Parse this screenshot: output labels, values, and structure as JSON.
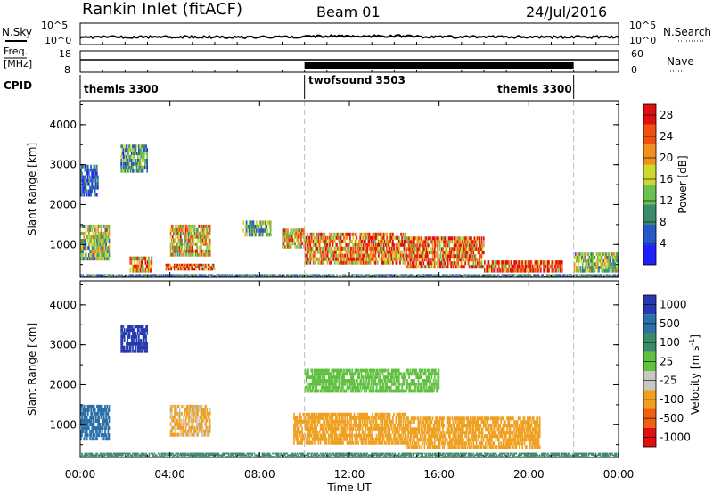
{
  "header": {
    "title": "Rankin Inlet (fitACF)",
    "beam": "Beam 01",
    "date": "24/Jul/2016"
  },
  "strip_noise": {
    "left_label": "N.Sky",
    "right_label": "N.Search",
    "left_ticks": [
      "10^5",
      "10^0"
    ],
    "right_ticks": [
      "10^5",
      "10^0"
    ]
  },
  "strip_freq": {
    "left_label_line1": "Freq.",
    "left_label_line2": "[MHz]",
    "left_ticks": [
      "18",
      "8"
    ],
    "right_ticks": [
      "60",
      "0"
    ],
    "right_label": "Nave"
  },
  "strip_cpid": {
    "label": "CPID",
    "segments": [
      {
        "name": "themis 3300",
        "start_h": 0,
        "end_h": 10.0
      },
      {
        "name": "twofsound 3503",
        "start_h": 10.0,
        "end_h": 22.0
      },
      {
        "name": "themis 3300",
        "start_h": 10.0,
        "end_h": 22.0,
        "label_anchor_h": 16.1
      }
    ]
  },
  "x_axis": {
    "label": "Time UT",
    "ticks": [
      "00:00",
      "04:00",
      "08:00",
      "12:00",
      "16:00",
      "20:00",
      "00:00"
    ],
    "tick_hours": [
      0,
      4,
      8,
      12,
      16,
      20,
      24
    ]
  },
  "chart_data": [
    {
      "type": "heatmap",
      "name": "power",
      "ylabel": "Slant Range [km]",
      "yticks": [
        1000,
        2000,
        3000,
        4000
      ],
      "ylim": [
        180,
        4600
      ],
      "xlim_hours": [
        0,
        24
      ],
      "colorbar": {
        "label": "Power [dB]",
        "ticks": [
          "4",
          "8",
          "12",
          "16",
          "20",
          "24",
          "28"
        ],
        "tick_values": [
          4,
          8,
          12,
          16,
          20,
          24,
          28
        ],
        "range": [
          0,
          30
        ],
        "colors": [
          "#2020ff",
          "#2858c8",
          "#3a8c68",
          "#6ac050",
          "#d0d830",
          "#f09020",
          "#f05010",
          "#e01010"
        ]
      },
      "regions": [
        {
          "t": [
            0.0,
            1.3
          ],
          "r": [
            600,
            1500
          ],
          "v": 14
        },
        {
          "t": [
            0.0,
            0.8
          ],
          "r": [
            2200,
            3000
          ],
          "v": 6
        },
        {
          "t": [
            1.8,
            3.0
          ],
          "r": [
            2800,
            3500
          ],
          "v": 10
        },
        {
          "t": [
            2.2,
            3.2
          ],
          "r": [
            300,
            700
          ],
          "v": 22
        },
        {
          "t": [
            4.0,
            5.8
          ],
          "r": [
            700,
            1500
          ],
          "v": 18
        },
        {
          "t": [
            3.8,
            6.0
          ],
          "r": [
            350,
            520
          ],
          "v": 24
        },
        {
          "t": [
            7.2,
            8.5
          ],
          "r": [
            1200,
            1600
          ],
          "v": 12
        },
        {
          "t": [
            9.0,
            10.0
          ],
          "r": [
            900,
            1400
          ],
          "v": 20
        },
        {
          "t": [
            10.0,
            14.5
          ],
          "r": [
            500,
            1300
          ],
          "v": 22
        },
        {
          "t": [
            14.5,
            18.0
          ],
          "r": [
            400,
            1200
          ],
          "v": 24
        },
        {
          "t": [
            18.0,
            21.5
          ],
          "r": [
            300,
            600
          ],
          "v": 26
        },
        {
          "t": [
            22.0,
            24.0
          ],
          "r": [
            300,
            800
          ],
          "v": 14
        },
        {
          "t": [
            0.0,
            24.0
          ],
          "r": [
            180,
            260
          ],
          "v": 8
        }
      ]
    },
    {
      "type": "heatmap",
      "name": "velocity",
      "ylabel": "Slant Range [km]",
      "yticks": [
        1000,
        2000,
        3000,
        4000
      ],
      "ylim": [
        180,
        4600
      ],
      "xlim_hours": [
        0,
        24
      ],
      "colorbar": {
        "label": "Velocity [m s^-1]",
        "ticks": [
          "1000",
          "500",
          "100",
          "25",
          "-25",
          "-100",
          "-500",
          "-1000"
        ],
        "tick_values": [
          1000,
          500,
          100,
          25,
          -25,
          -100,
          -500,
          -1000
        ],
        "colors": [
          "#2838b0",
          "#2c70a8",
          "#3a8c68",
          "#60c040",
          "#c8c8c0",
          "#f0a020",
          "#f06010",
          "#e01010"
        ]
      },
      "regions": [
        {
          "t": [
            0.0,
            1.3
          ],
          "r": [
            600,
            1500
          ],
          "v": 300
        },
        {
          "t": [
            1.8,
            3.0
          ],
          "r": [
            2800,
            3500
          ],
          "v": 700
        },
        {
          "t": [
            4.0,
            5.8
          ],
          "r": [
            700,
            1500
          ],
          "v": -120
        },
        {
          "t": [
            9.5,
            14.5
          ],
          "r": [
            500,
            1300
          ],
          "v": -200
        },
        {
          "t": [
            14.5,
            20.5
          ],
          "r": [
            400,
            1200
          ],
          "v": -300
        },
        {
          "t": [
            0.0,
            24.0
          ],
          "r": [
            180,
            300
          ],
          "v": 60
        },
        {
          "t": [
            10.0,
            16.0
          ],
          "r": [
            1800,
            2400
          ],
          "v": 0
        }
      ]
    }
  ]
}
